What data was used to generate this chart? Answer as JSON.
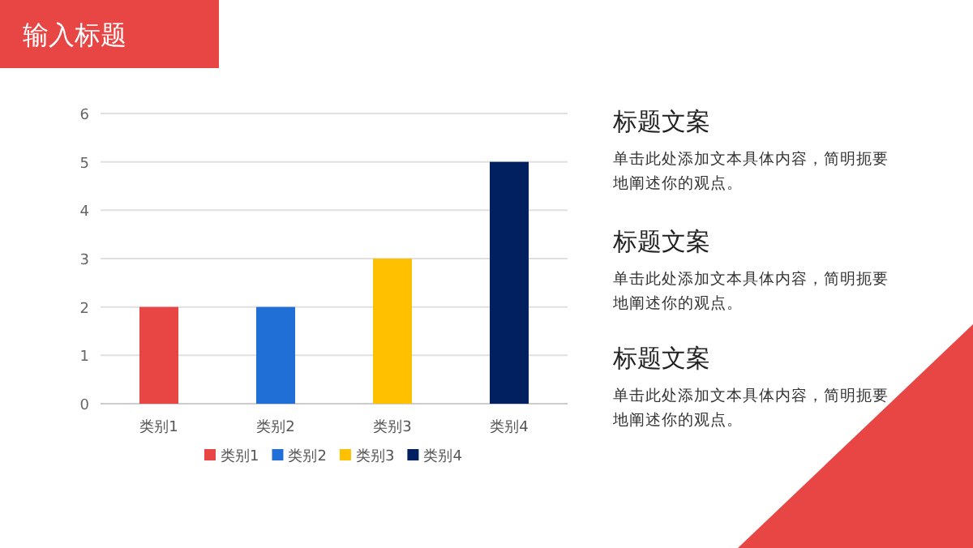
{
  "chart_data": {
    "type": "bar",
    "title": "输入标题",
    "categories": [
      "类别1",
      "类别2",
      "类别3",
      "类别4"
    ],
    "series": [
      {
        "name": "类别1",
        "color": "#e84545",
        "values": [
          2,
          null,
          null,
          null
        ]
      },
      {
        "name": "类别2",
        "color": "#1f6fd6",
        "values": [
          null,
          2,
          null,
          null
        ]
      },
      {
        "name": "类别3",
        "color": "#ffc000",
        "values": [
          null,
          null,
          3,
          null
        ]
      },
      {
        "name": "类别4",
        "color": "#002060",
        "values": [
          null,
          null,
          null,
          5
        ]
      }
    ],
    "ylim": [
      0,
      6
    ],
    "yticks": [
      0,
      1,
      2,
      3,
      4,
      5,
      6
    ],
    "grid": "y",
    "legend": "bottom",
    "annotations": [
      "标题文案",
      "单击此处添加文本具体内容，简明扼要地阐述你的观点。",
      "标题文案",
      "单击此处添加文本具体内容，简明扼要地阐述你的观点。",
      "标题文案",
      "单击此处添加文本具体内容，简明扼要地阐述你的观点。"
    ]
  }
}
